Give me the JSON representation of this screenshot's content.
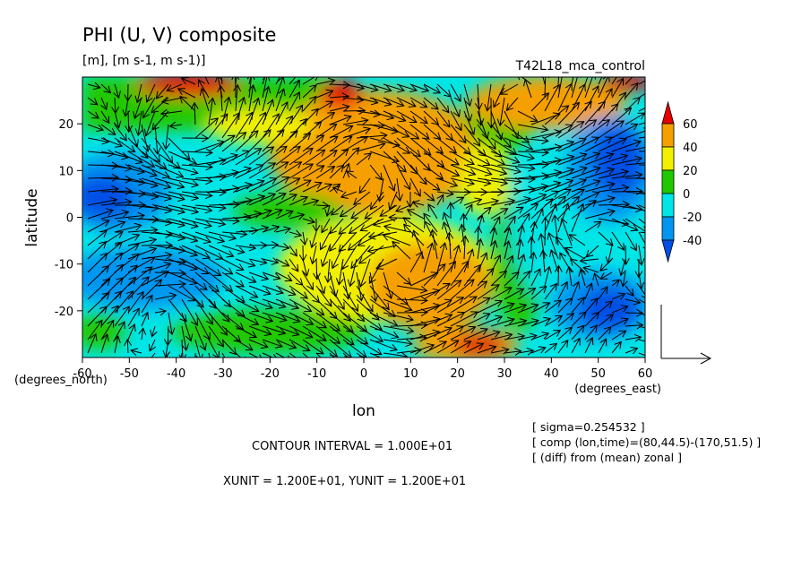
{
  "chart_data": {
    "type": "heatmap",
    "title": "PHI (U, V) composite",
    "subtitle": "[m], [m s-1, m s-1)]",
    "run_label": "T42L18_mca_control",
    "xlabel": "lon",
    "ylabel": "latitude",
    "x_units": "(degrees_east)",
    "y_units": "(degrees_north)",
    "x_ticks": [
      "-60",
      "-50",
      "-40",
      "-30",
      "-20",
      "-10",
      "0",
      "10",
      "20",
      "30",
      "40",
      "50",
      "60"
    ],
    "y_ticks": [
      "20",
      "10",
      "0",
      "-10",
      "-20"
    ],
    "xlim": [
      -60,
      60
    ],
    "ylim": [
      -30,
      30
    ],
    "colorbar": {
      "labels": [
        "60",
        "40",
        "20",
        "0",
        "-20",
        "-40"
      ],
      "colors": [
        "#e60000",
        "#f5a000",
        "#f0f000",
        "#20c800",
        "#00e6e6",
        "#0096f0",
        "#0050e6"
      ]
    },
    "contour_interval": "CONTOUR INTERVAL = 1.000E+01",
    "vector_units": "XUNIT = 1.200E+01, YUNIT = 1.200E+01",
    "notes": [
      "[ sigma=0.254532 ]",
      "[ comp (lon,time)=(80,44.5)-(170,51.5) ]",
      "[ (diff) from (mean) zonal ]"
    ]
  }
}
